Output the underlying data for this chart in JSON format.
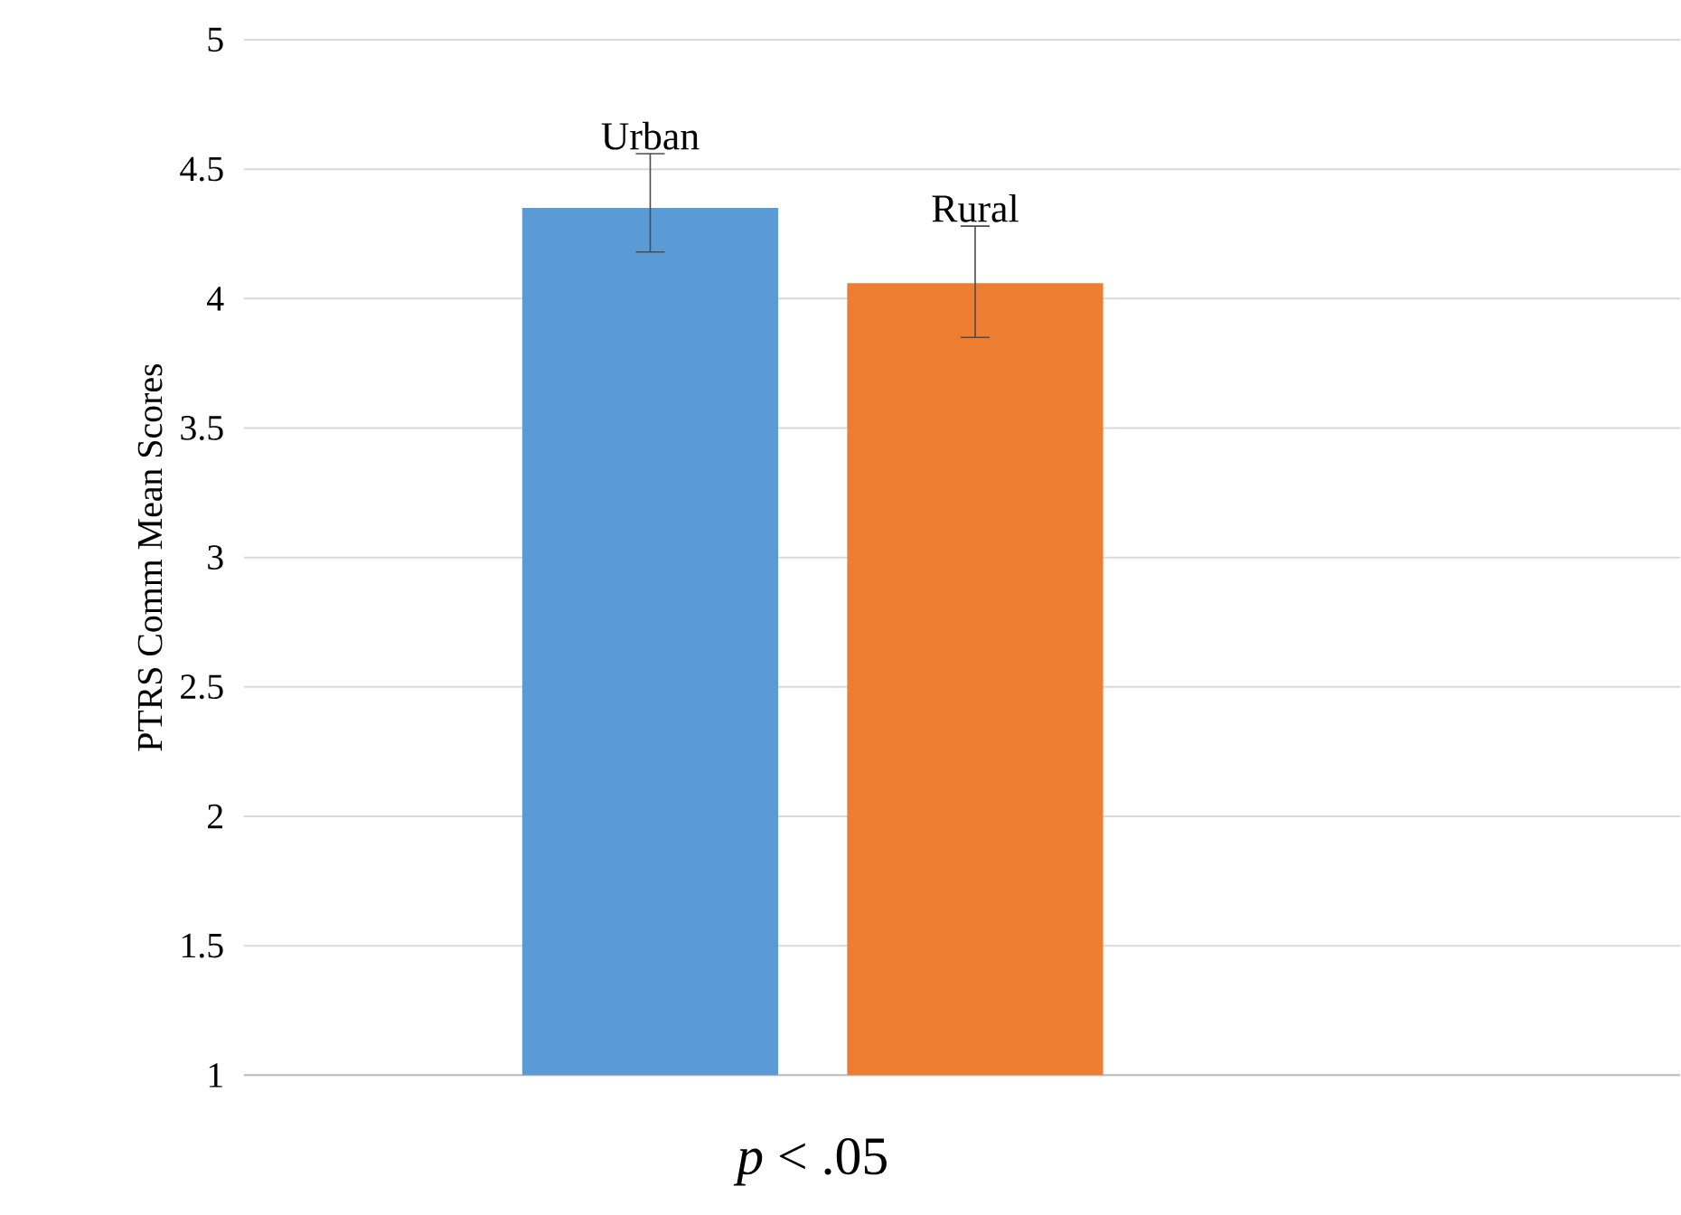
{
  "chart_data": {
    "type": "bar",
    "ylabel": "PTRS Comm Mean Scores",
    "categories": [
      null
    ],
    "series": [
      {
        "name": "Urban",
        "color": "#5b9bd5",
        "values": [
          4.35
        ],
        "errors": [
          [
            4.18,
            4.56
          ]
        ]
      },
      {
        "name": "Rural",
        "color": "#ed7d31",
        "values": [
          4.06
        ],
        "errors": [
          [
            3.85,
            4.28
          ]
        ]
      }
    ],
    "ylim": [
      1,
      5
    ],
    "yticks": [
      1,
      1.5,
      2,
      2.5,
      3,
      3.5,
      4,
      4.5,
      5
    ],
    "grid": "y",
    "annotations": [
      "*p* < .05"
    ]
  }
}
